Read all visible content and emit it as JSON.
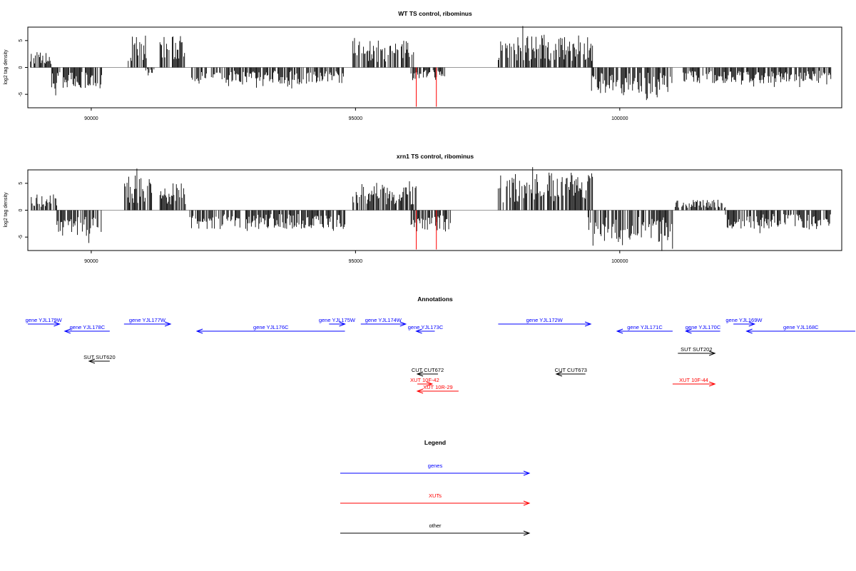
{
  "colors": {
    "gene": "#0000ff",
    "xut": "#ff0000",
    "other": "#000000",
    "bar": "#000000",
    "highlight": "#ff0000",
    "baseline": "#999999"
  },
  "chart_data": [
    {
      "type": "bar",
      "title": "WT TS control, ribominus",
      "ylabel": "log2 tag density",
      "xlim": [
        88800,
        104200
      ],
      "ylim": [
        -7.5,
        7.5
      ],
      "xticks": [
        90000,
        95000,
        100000
      ],
      "xtick_labels": [
        "90000",
        "95000",
        "100000"
      ],
      "yticks": [
        -5,
        0,
        5
      ],
      "ytick_labels": [
        "-5",
        "0",
        "5"
      ],
      "highlight_bars": [
        {
          "x": 96150,
          "y": -7.3
        },
        {
          "x": 96530,
          "y": -7.3
        }
      ],
      "segments": [
        {
          "start": 88850,
          "end": 89250,
          "amp": 3.0,
          "sign": 1
        },
        {
          "start": 89250,
          "end": 90200,
          "amp": 4.0,
          "sign": -1
        },
        {
          "start": 90700,
          "end": 91050,
          "amp": 6.0,
          "sign": 1
        },
        {
          "start": 91000,
          "end": 91200,
          "amp": 1.5,
          "sign": -1
        },
        {
          "start": 91300,
          "end": 91800,
          "amp": 6.0,
          "sign": 1
        },
        {
          "start": 91900,
          "end": 94800,
          "amp": 3.0,
          "sign": -1
        },
        {
          "start": 94950,
          "end": 96100,
          "amp": 5.0,
          "sign": 1
        },
        {
          "start": 96050,
          "end": 96700,
          "amp": 2.5,
          "sign": -1
        },
        {
          "start": 97700,
          "end": 99500,
          "amp": 6.0,
          "sign": 1
        },
        {
          "start": 99450,
          "end": 101000,
          "amp": 5.0,
          "sign": -1
        },
        {
          "start": 101200,
          "end": 104000,
          "amp": 3.0,
          "sign": -1
        }
      ]
    },
    {
      "type": "bar",
      "title": "xrn1 TS control, ribominus",
      "ylabel": "log2 tag density",
      "xlim": [
        88800,
        104200
      ],
      "ylim": [
        -7.5,
        7.5
      ],
      "xticks": [
        90000,
        95000,
        100000
      ],
      "xtick_labels": [
        "90000",
        "95000",
        "100000"
      ],
      "yticks": [
        -5,
        0,
        5
      ],
      "ytick_labels": [
        "-5",
        "0",
        "5"
      ],
      "highlight_bars": [
        {
          "x": 96150,
          "y": -7.3
        },
        {
          "x": 96530,
          "y": -7.3
        }
      ],
      "segments": [
        {
          "start": 88850,
          "end": 89350,
          "amp": 3.0,
          "sign": 1
        },
        {
          "start": 89350,
          "end": 90200,
          "amp": 5.0,
          "sign": -1
        },
        {
          "start": 90600,
          "end": 91150,
          "amp": 6.5,
          "sign": 1
        },
        {
          "start": 91300,
          "end": 91800,
          "amp": 5.0,
          "sign": 1
        },
        {
          "start": 91850,
          "end": 94800,
          "amp": 3.5,
          "sign": -1
        },
        {
          "start": 94950,
          "end": 96150,
          "amp": 5.0,
          "sign": 1
        },
        {
          "start": 96050,
          "end": 96800,
          "amp": 4.0,
          "sign": -1
        },
        {
          "start": 97700,
          "end": 99500,
          "amp": 7.0,
          "sign": 1
        },
        {
          "start": 99400,
          "end": 101000,
          "amp": 6.0,
          "sign": -1
        },
        {
          "start": 101050,
          "end": 102000,
          "amp": 2.0,
          "sign": 1
        },
        {
          "start": 102000,
          "end": 104000,
          "amp": 3.5,
          "sign": -1
        }
      ]
    }
  ],
  "annotations": {
    "title": "Annotations",
    "features": [
      {
        "label": "gene YJL179W",
        "type": "gene",
        "start": 88800,
        "end": 89400,
        "strand": "+",
        "row": 0
      },
      {
        "label": "gene YJL178C",
        "type": "gene",
        "start": 89500,
        "end": 90350,
        "strand": "-",
        "row": 1
      },
      {
        "label": "gene YJL177W",
        "type": "gene",
        "start": 90620,
        "end": 91500,
        "strand": "+",
        "row": 0
      },
      {
        "label": "gene YJL176C",
        "type": "gene",
        "start": 92000,
        "end": 94800,
        "strand": "-",
        "row": 1
      },
      {
        "label": "gene YJL175W",
        "type": "gene",
        "start": 94500,
        "end": 94800,
        "strand": "+",
        "row": 0
      },
      {
        "label": "gene YJL174W",
        "type": "gene",
        "start": 95100,
        "end": 95950,
        "strand": "+",
        "row": 0
      },
      {
        "label": "gene YJL173C",
        "type": "gene",
        "start": 96150,
        "end": 96500,
        "strand": "-",
        "row": 1
      },
      {
        "label": "gene YJL172W",
        "type": "gene",
        "start": 97700,
        "end": 99450,
        "strand": "+",
        "row": 0
      },
      {
        "label": "gene YJL171C",
        "type": "gene",
        "start": 99950,
        "end": 101000,
        "strand": "-",
        "row": 1
      },
      {
        "label": "gene YJL170C",
        "type": "gene",
        "start": 101250,
        "end": 101900,
        "strand": "-",
        "row": 1
      },
      {
        "label": "gene YJL169W",
        "type": "gene",
        "start": 102150,
        "end": 102550,
        "strand": "+",
        "row": 0
      },
      {
        "label": "gene YJL168C",
        "type": "gene",
        "start": 102400,
        "end": 104600,
        "strand": "-",
        "row": 1
      },
      {
        "label": "SUT SUT620",
        "type": "other",
        "start": 89960,
        "end": 90350,
        "strand": "-",
        "row": 2
      },
      {
        "label": "SUT SUT202",
        "type": "other",
        "start": 101100,
        "end": 101800,
        "strand": "+",
        "row": 3
      },
      {
        "label": "CUT CUT672",
        "type": "other",
        "start": 96170,
        "end": 96560,
        "strand": "-",
        "row": 4
      },
      {
        "label": "CUT CUT673",
        "type": "other",
        "start": 98800,
        "end": 99350,
        "strand": "-",
        "row": 4
      },
      {
        "label": "XUT 10F-42",
        "type": "xut",
        "start": 96170,
        "end": 96450,
        "strand": "+",
        "row": 5
      },
      {
        "label": "XUT 10R-29",
        "type": "xut",
        "start": 96170,
        "end": 96950,
        "strand": "-",
        "row": 6
      },
      {
        "label": "XUT 10F-44",
        "type": "xut",
        "start": 101000,
        "end": 101800,
        "strand": "+",
        "row": 5
      }
    ]
  },
  "legend": {
    "title": "Legend",
    "entries": [
      {
        "label": "genes",
        "type": "gene"
      },
      {
        "label": "XUTs",
        "type": "xut"
      },
      {
        "label": "other",
        "type": "other"
      }
    ]
  }
}
